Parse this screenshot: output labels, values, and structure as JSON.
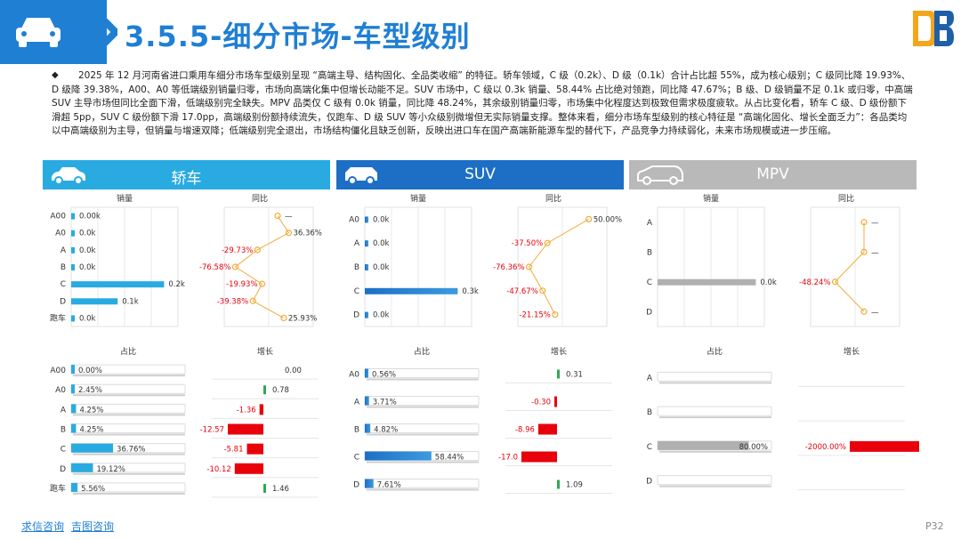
{
  "title": "3.5.5-细分市场-车型级别",
  "summary": "2025 年 12 月河南省进口乘用车细分市场车型级别呈现 “高端主导、结构固化、全品类收缩” 的特征。轿车领域，C 级（0.2k）、D 级（0.1k）合计占比超 55%，成为核心级别；C 级同比降 19.93%、D 级降 39.38%，A00、A0 等低端级别销量归零，市场向高端化集中但增长动能不足。SUV 市场中，C 级以 0.3k 销量、58.44% 占比绝对领跑，同比降 47.67%；B 级、D 级销量不足 0.1k 或归零，中高端 SUV 主导市场但同比全面下滑，低端级别完全缺失。MPV 品类仅 C 级有 0.0k 销量，同比降 48.24%，其余级别销量归零，市场集中化程度达到极致但需求极度疲软。从占比变化看，轿车 C 级、D 级份额下滑超 5pp，SUV C 级份额下滑 17.0pp，高端级别份额持续流失，仅跑车、D 级 SUV 等小众级别微增但无实际销量支撑。整体来看，细分市场车型级别的核心特征是 “高端化固化、增长全面乏力”：各品类均以中高端级别为主导，但销量与增速双降；低端级别完全退出，市场结构僵化且缺乏创新，反映出进口车在国产高端新能源车型的替代下，产品竞争力持续弱化，未来市场规模或进一步压缩。",
  "footer": {
    "link1": "求信咨询",
    "link2": "吉图咨询",
    "page": "P32"
  },
  "colors": {
    "blue": "#1f7fd3",
    "sedan": "#29abe2",
    "suv": "#1d6fc6",
    "mpv": "#b0b0b0",
    "line": "#f0ad3c",
    "neg": "#e8000b",
    "pos": "#2fa84f"
  },
  "chart_data": [
    {
      "type": "bar",
      "panel": "轿车",
      "categories": [
        "A00",
        "A0",
        "A",
        "B",
        "C",
        "D",
        "跑车"
      ],
      "charts": [
        {
          "title": "销量",
          "values": [
            0.0,
            0.0,
            0.0,
            0.0,
            0.2,
            0.1,
            0.0
          ],
          "labels": [
            "0.00k",
            "0.0k",
            "0.0k",
            "0.0k",
            "0.2k",
            "0.1k",
            "0.0k"
          ]
        },
        {
          "title": "同比",
          "type": "line",
          "values": [
            null,
            36.36,
            -29.73,
            -76.58,
            -19.93,
            -39.38,
            25.93
          ],
          "labels": [
            "—",
            "36.36%",
            "-29.73%",
            "-76.58%",
            "-19.93%",
            "-39.38%",
            "25.93%"
          ]
        },
        {
          "title": "占比",
          "values": [
            0.0,
            2.45,
            4.25,
            4.25,
            36.76,
            19.12,
            5.56
          ],
          "labels": [
            "0.00%",
            "2.45%",
            "4.25%",
            "4.25%",
            "36.76%",
            "19.12%",
            "5.56%"
          ]
        },
        {
          "title": "增长",
          "values": [
            0.0,
            0.78,
            -1.36,
            -12.57,
            -5.81,
            -10.12,
            1.46
          ],
          "labels": [
            "0.00",
            "0.78",
            "-1.36",
            "-12.57",
            "-5.81",
            "-10.12",
            "1.46"
          ]
        }
      ]
    },
    {
      "type": "bar",
      "panel": "SUV",
      "categories": [
        "A0",
        "A",
        "B",
        "C",
        "D"
      ],
      "charts": [
        {
          "title": "销量",
          "values": [
            0.0,
            0.0,
            0.0,
            0.3,
            0.0
          ],
          "labels": [
            "0.0k",
            "0.0k",
            "0.0k",
            "0.3k",
            "0.0k"
          ]
        },
        {
          "title": "同比",
          "type": "line",
          "values": [
            50.0,
            -37.5,
            -76.36,
            -47.67,
            -21.15
          ],
          "labels": [
            "50.00%",
            "-37.50%",
            "-76.36%",
            "-47.67%",
            "-21.15%"
          ]
        },
        {
          "title": "占比",
          "values": [
            0.56,
            3.71,
            4.82,
            58.44,
            7.61
          ],
          "labels": [
            "0.56%",
            "3.71%",
            "4.82%",
            "58.44%",
            "7.61%"
          ]
        },
        {
          "title": "增长",
          "values": [
            0.31,
            -0.3,
            -8.96,
            -17.0,
            1.09
          ],
          "labels": [
            "0.31",
            "-0.30",
            "-8.96",
            "-17.0",
            "1.09"
          ]
        }
      ]
    },
    {
      "type": "bar",
      "panel": "MPV",
      "categories": [
        "A",
        "B",
        "C",
        "D"
      ],
      "charts": [
        {
          "title": "销量",
          "values": [
            null,
            null,
            0.0,
            null
          ],
          "labels": [
            "",
            "",
            "0.0k",
            ""
          ]
        },
        {
          "title": "同比",
          "type": "line",
          "values": [
            null,
            null,
            -48.24,
            null
          ],
          "labels": [
            "—",
            "—",
            "-48.24%",
            "—"
          ]
        },
        {
          "title": "占比",
          "values": [
            null,
            null,
            80.0,
            null
          ],
          "labels": [
            "",
            "",
            "80.00%",
            ""
          ]
        },
        {
          "title": "增长",
          "values": [
            null,
            null,
            -2000.0,
            null
          ],
          "labels": [
            "",
            "",
            "-2000.00%",
            ""
          ]
        }
      ]
    }
  ]
}
